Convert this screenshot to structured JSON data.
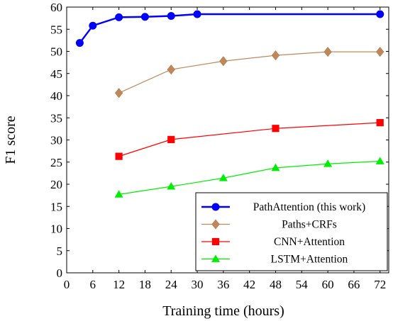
{
  "chart_data": {
    "type": "line",
    "xlabel": "Training time (hours)",
    "ylabel": "F1 score",
    "xlim": [
      0,
      74
    ],
    "ylim": [
      0,
      60
    ],
    "xticks": [
      0,
      6,
      12,
      18,
      24,
      30,
      36,
      42,
      48,
      54,
      60,
      66,
      72
    ],
    "yticks": [
      0,
      5,
      10,
      15,
      20,
      25,
      30,
      35,
      40,
      45,
      50,
      55,
      60
    ],
    "grid": false,
    "legend_position": "bottom-right",
    "series": [
      {
        "name": "PathAttention (this work)",
        "color": "#0000ff",
        "marker": "circle",
        "x": [
          3,
          6,
          12,
          18,
          24,
          30,
          72
        ],
        "y": [
          51.9,
          55.8,
          57.7,
          57.8,
          58.0,
          58.4,
          58.4
        ]
      },
      {
        "name": "Paths+CRFs",
        "color": "#c0885a",
        "marker": "diamond",
        "x": [
          12,
          24,
          36,
          48,
          60,
          72
        ],
        "y": [
          40.6,
          45.9,
          47.8,
          49.1,
          49.9,
          49.9
        ]
      },
      {
        "name": "CNN+Attention",
        "color": "#ff0000",
        "marker": "square",
        "x": [
          12,
          24,
          48,
          72
        ],
        "y": [
          26.3,
          30.1,
          32.6,
          33.9
        ]
      },
      {
        "name": "LSTM+Attention",
        "color": "#00ee00",
        "marker": "triangle",
        "x": [
          12,
          24,
          36,
          48,
          60,
          72
        ],
        "y": [
          17.7,
          19.5,
          21.4,
          23.7,
          24.6,
          25.2
        ]
      }
    ]
  }
}
